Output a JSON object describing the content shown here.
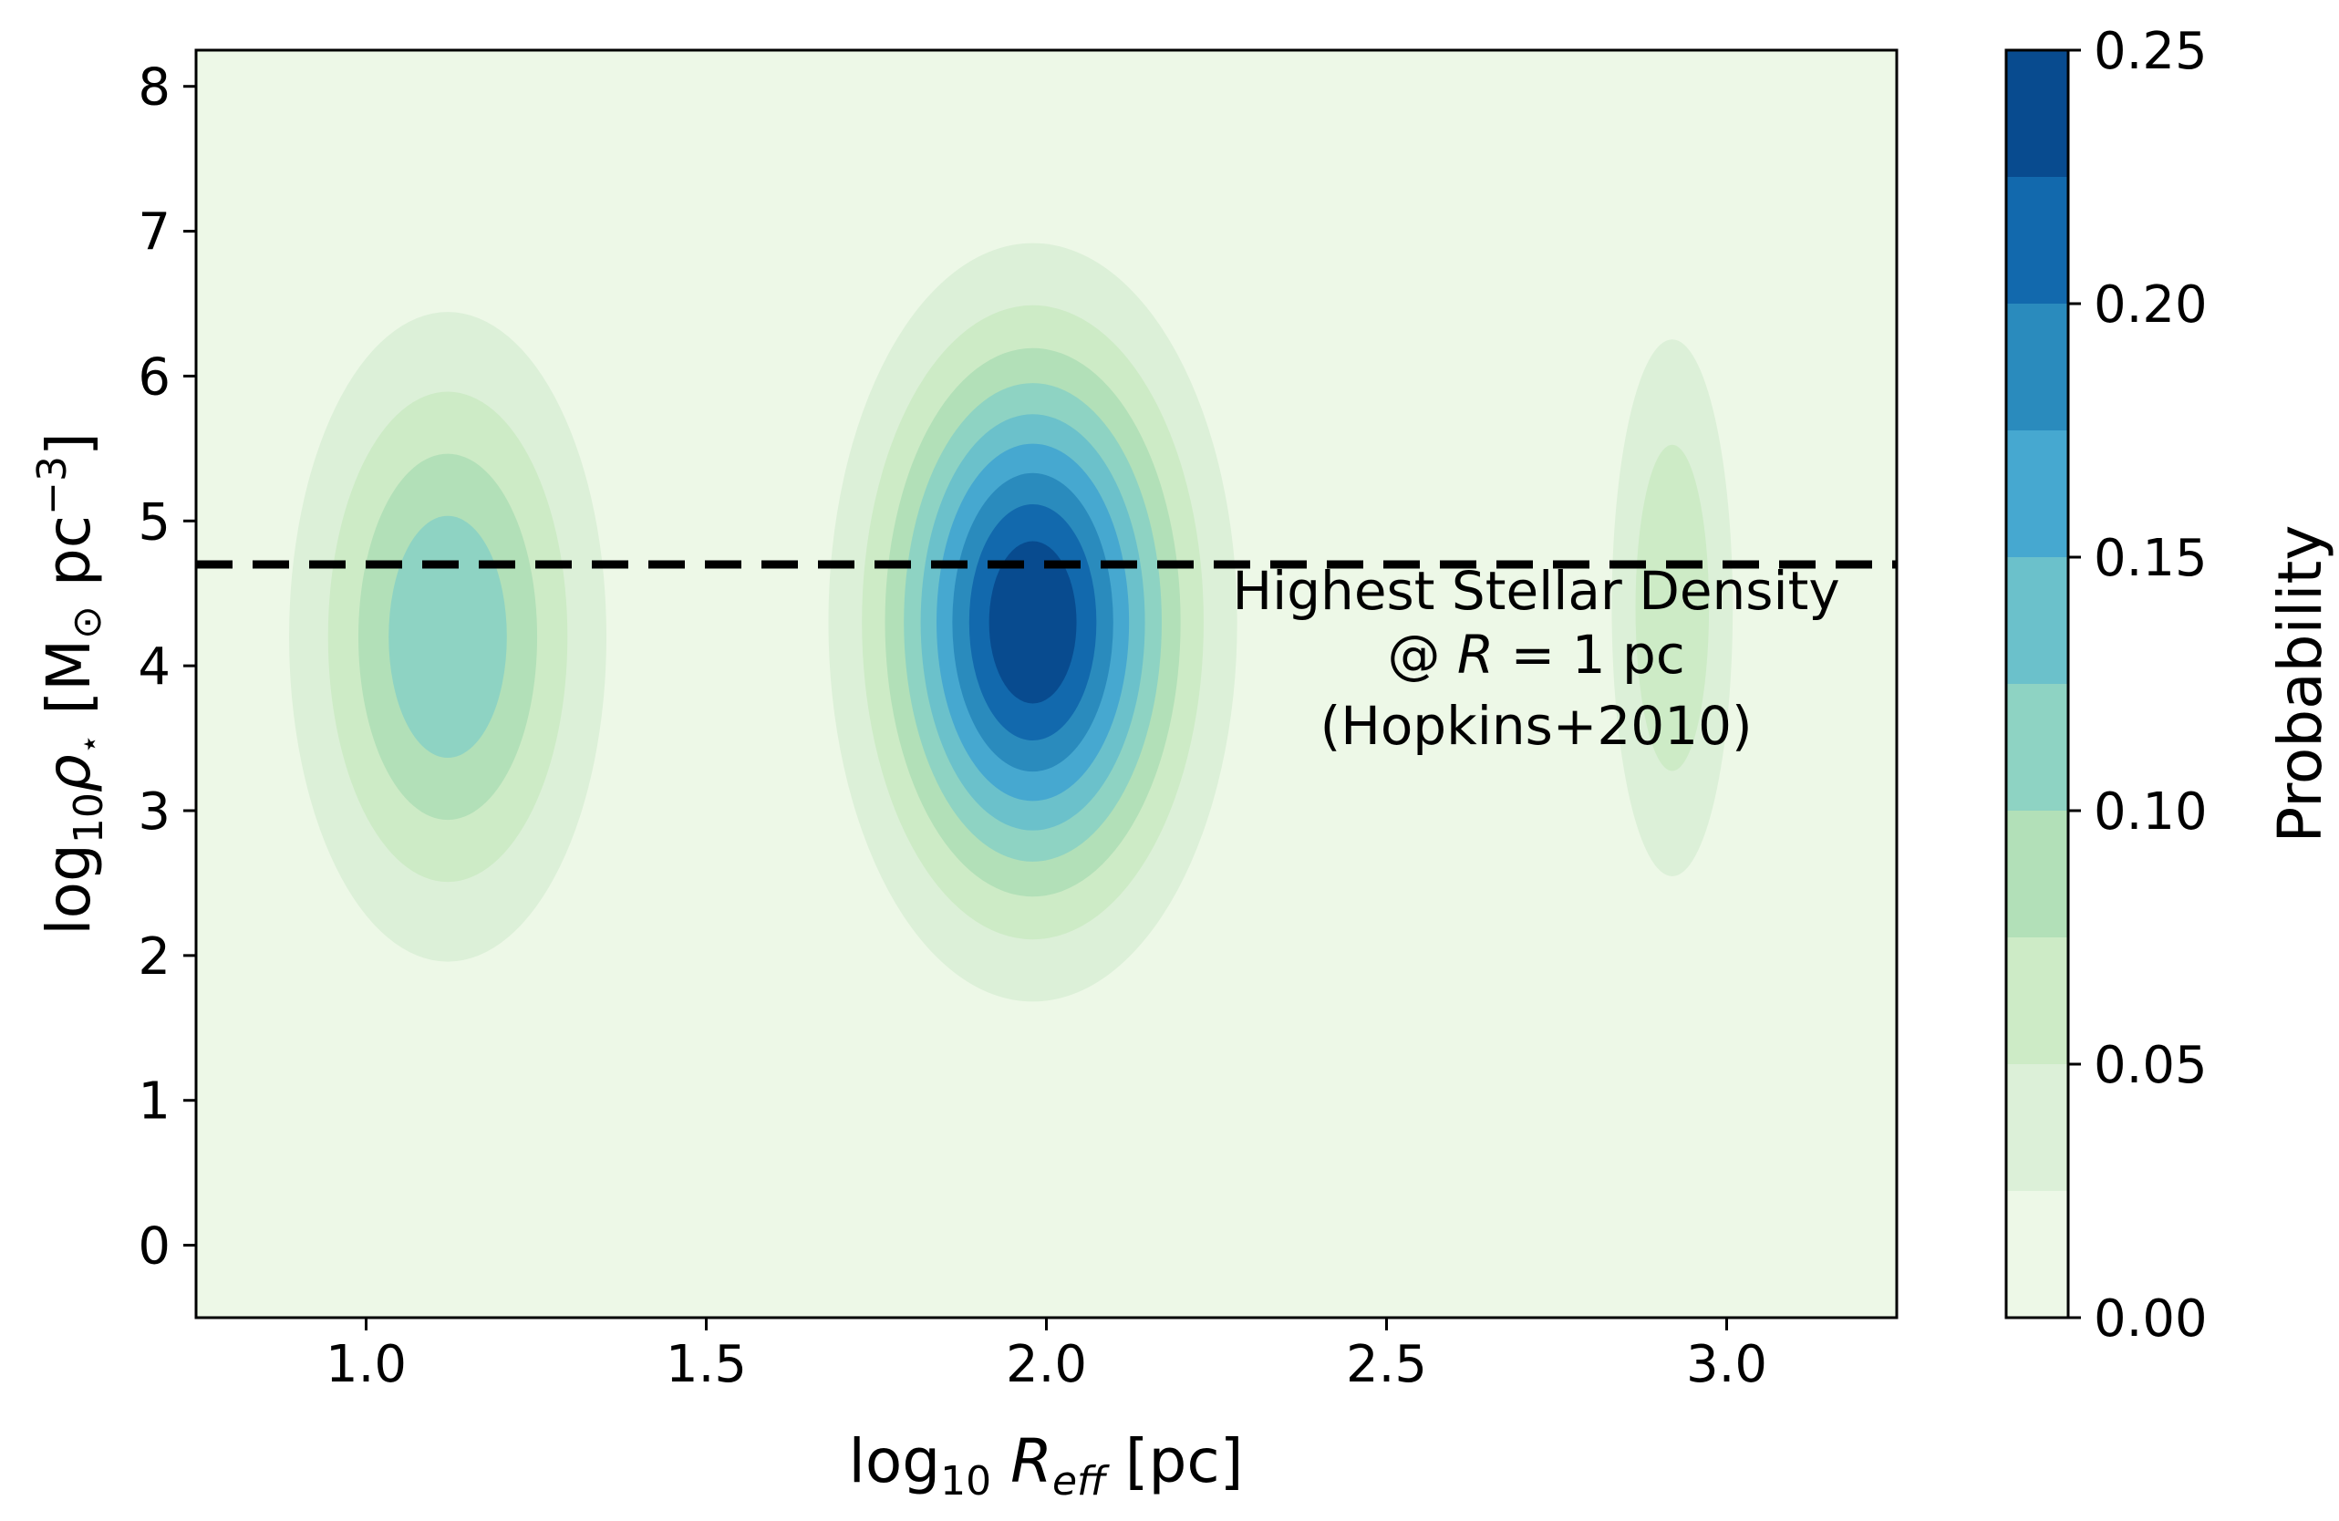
{
  "chart_data": {
    "type": "contour",
    "xlabel_parts": {
      "pre": "log",
      "sub": "10",
      "mid": " ",
      "var": "R",
      "varsub": "eff",
      "post": " [pc]"
    },
    "ylabel_parts": {
      "pre": "log",
      "sub": "10",
      "var": "ρ",
      "varsub": "⋆",
      "mid": "  [M",
      "odot": "⊙",
      "post1": " pc",
      "sup": "−3",
      "post2": "]"
    },
    "xlim": [
      0.75,
      3.25
    ],
    "ylim": [
      -0.5,
      8.25
    ],
    "xticks": [
      1.0,
      1.5,
      2.0,
      2.5,
      3.0
    ],
    "xtick_labels": [
      "1.0",
      "1.5",
      "2.0",
      "2.5",
      "3.0"
    ],
    "yticks": [
      0,
      1,
      2,
      3,
      4,
      5,
      6,
      7,
      8
    ],
    "ytick_labels": [
      "0",
      "1",
      "2",
      "3",
      "4",
      "5",
      "6",
      "7",
      "8"
    ],
    "colorbar": {
      "label": "Probability",
      "range": [
        0.0,
        0.25
      ],
      "ticks": [
        0.0,
        0.05,
        0.1,
        0.15,
        0.2,
        0.25
      ],
      "tick_labels": [
        "0.00",
        "0.05",
        "0.10",
        "0.15",
        "0.20",
        "0.25"
      ],
      "levels": [
        0.0,
        0.025,
        0.05,
        0.075,
        0.1,
        0.125,
        0.15,
        0.175,
        0.2,
        0.225,
        0.25
      ],
      "colors": [
        "#edf8e7",
        "#dcf0d8",
        "#cdebc6",
        "#b2e0b8",
        "#8ed3c3",
        "#6bc1cb",
        "#46a8d0",
        "#2a8bbd",
        "#1269ad",
        "#084b8f"
      ]
    },
    "blobs": [
      {
        "name": "blob-r1",
        "cx": 1.12,
        "cy": 4.2,
        "sx": 0.13,
        "sy": 1.25,
        "amp": 0.125,
        "edge": 3.5
      },
      {
        "name": "blob-r2",
        "cx": 1.98,
        "cy": 4.3,
        "sx": 0.14,
        "sy": 1.22,
        "amp": 0.25,
        "edge": 3.5
      },
      {
        "name": "blob-r3",
        "cx": 2.92,
        "cy": 4.4,
        "sx": 0.06,
        "sy": 1.25,
        "amp": 0.075,
        "edge": 3.5
      }
    ],
    "reference_line": {
      "y": 4.7,
      "style": "dashed",
      "color": "#000000"
    },
    "annotation": {
      "line1": "Highest Stellar Density",
      "line2_pre": "@ ",
      "line2_var": "R",
      "line2_post": " = 1 pc",
      "line3": "(Hopkins+2010)",
      "x": 2.72,
      "y": 3.95
    }
  }
}
